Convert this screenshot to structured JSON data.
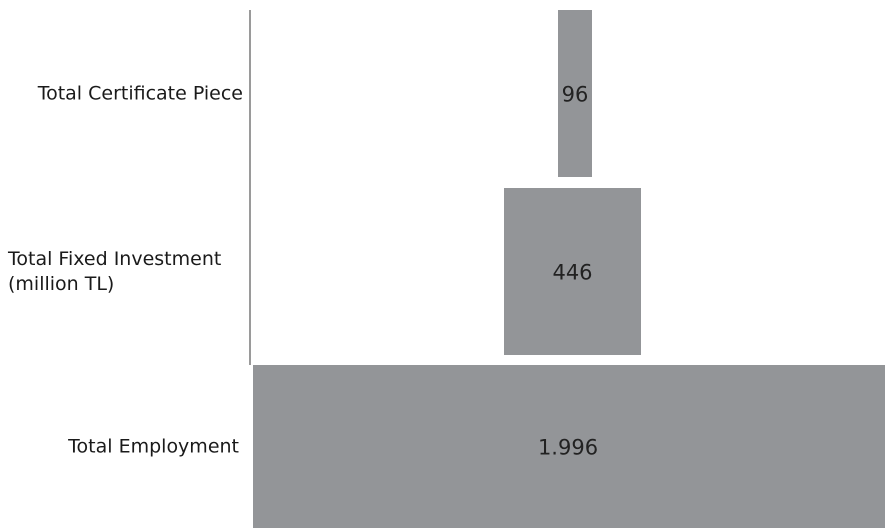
{
  "chart_data": {
    "type": "bar",
    "orientation": "horizontal-centered",
    "categories": [
      [
        "Total Certificate Piece"
      ],
      [
        "Total Fixed Investment",
        "(million TL)"
      ],
      [
        "Total Employment"
      ]
    ],
    "values": [
      96,
      446,
      1996
    ],
    "value_labels": [
      "96",
      "446",
      "1.996"
    ],
    "title": "",
    "xlabel": "",
    "ylabel": "",
    "grid": false,
    "legend": "none",
    "bar_color": "#939598",
    "axis_color": "#9a9a9a"
  }
}
